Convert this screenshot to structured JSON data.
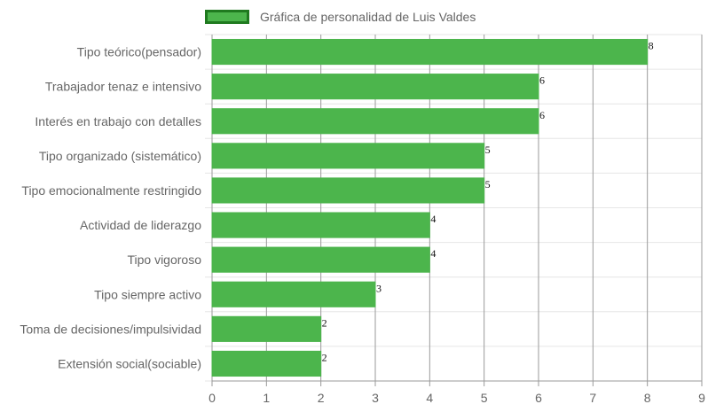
{
  "chart_data": {
    "type": "bar",
    "orientation": "horizontal",
    "title": "",
    "xlabel": "",
    "ylabel": "",
    "xlim": [
      0,
      9
    ],
    "ticks": [
      "0",
      "1",
      "2",
      "3",
      "4",
      "5",
      "6",
      "7",
      "8",
      "9"
    ],
    "grid": true,
    "legend_position": "top",
    "categories": [
      "Tipo teórico(pensador)",
      "Trabajador tenaz e intensivo",
      "Interés en trabajo con detalles",
      "Tipo organizado (sistemático)",
      "Tipo emocionalmente restringido",
      "Actividad de liderazgo",
      "Tipo vigoroso",
      "Tipo siempre activo",
      "Toma de decisiones/impulsividad",
      "Extensión social(sociable)"
    ],
    "series": [
      {
        "name": "Gráfica de personalidad de Luis Valdes",
        "values": [
          8,
          6,
          6,
          5,
          5,
          4,
          4,
          3,
          2,
          2
        ],
        "color": "#4cb54c",
        "border_color": "#1f7a1f"
      }
    ]
  }
}
